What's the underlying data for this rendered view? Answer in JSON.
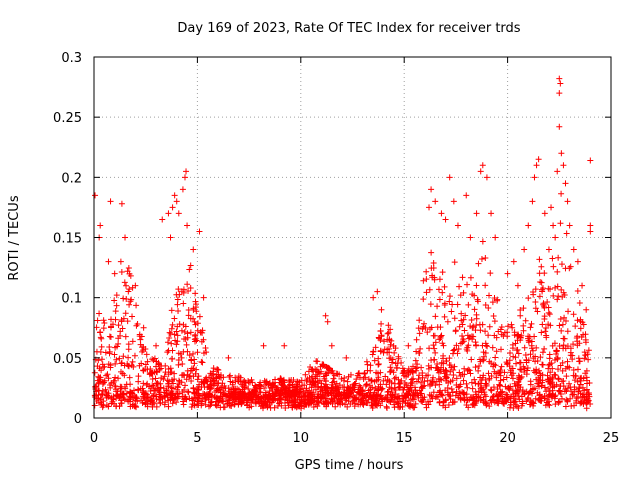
{
  "chart_data": {
    "type": "scatter",
    "title": "Day 169 of 2023, Rate Of TEC Index for receiver trds",
    "xlabel": "GPS time / hours",
    "ylabel": "ROTI / TECUs",
    "xlim": [
      0,
      25
    ],
    "ylim": [
      0,
      0.3
    ],
    "xticks": [
      0,
      5,
      10,
      15,
      20,
      25
    ],
    "yticks": [
      0,
      0.05,
      0.1,
      0.15,
      0.2,
      0.25,
      0.3
    ],
    "xtick_labels": [
      "0",
      "5",
      "10",
      "15",
      "20",
      "25"
    ],
    "ytick_labels": [
      "0",
      "0.05",
      "0.1",
      "0.15",
      "0.2",
      "0.25",
      "0.3"
    ],
    "grid": true,
    "marker": "+",
    "color": "#ff0000",
    "envelope": {
      "x": [
        0,
        0.3,
        0.6,
        1.0,
        1.3,
        1.6,
        2.0,
        2.5,
        3.0,
        3.5,
        3.9,
        4.2,
        4.6,
        5.0,
        5.5,
        6.0,
        7.0,
        8.0,
        9.0,
        10.0,
        10.5,
        11.0,
        11.5,
        12.0,
        13.0,
        13.5,
        14.0,
        14.5,
        15.0,
        15.5,
        16.0,
        16.3,
        16.7,
        17.0,
        17.5,
        18.0,
        18.5,
        18.8,
        19.2,
        19.6,
        20.0,
        20.5,
        21.0,
        21.3,
        21.7,
        22.0,
        22.3,
        22.6,
        23.0,
        23.4,
        23.8,
        24.0
      ],
      "y": [
        0.06,
        0.1,
        0.08,
        0.1,
        0.13,
        0.14,
        0.1,
        0.06,
        0.05,
        0.05,
        0.12,
        0.15,
        0.14,
        0.1,
        0.05,
        0.04,
        0.035,
        0.03,
        0.035,
        0.03,
        0.045,
        0.05,
        0.04,
        0.035,
        0.04,
        0.06,
        0.085,
        0.07,
        0.04,
        0.045,
        0.13,
        0.14,
        0.12,
        0.13,
        0.13,
        0.11,
        0.14,
        0.15,
        0.13,
        0.09,
        0.08,
        0.09,
        0.11,
        0.15,
        0.13,
        0.12,
        0.15,
        0.19,
        0.14,
        0.12,
        0.08,
        0.05
      ]
    },
    "outliers": [
      [
        0.05,
        0.185
      ],
      [
        0.25,
        0.15
      ],
      [
        0.3,
        0.16
      ],
      [
        0.7,
        0.13
      ],
      [
        0.8,
        0.18
      ],
      [
        1.0,
        0.12
      ],
      [
        1.3,
        0.13
      ],
      [
        1.35,
        0.178
      ],
      [
        1.5,
        0.15
      ],
      [
        2.0,
        0.11
      ],
      [
        2.4,
        0.075
      ],
      [
        3.0,
        0.06
      ],
      [
        3.3,
        0.165
      ],
      [
        3.6,
        0.17
      ],
      [
        3.7,
        0.15
      ],
      [
        3.8,
        0.175
      ],
      [
        3.9,
        0.185
      ],
      [
        4.0,
        0.18
      ],
      [
        4.1,
        0.17
      ],
      [
        4.3,
        0.19
      ],
      [
        4.4,
        0.2
      ],
      [
        4.45,
        0.205
      ],
      [
        4.5,
        0.16
      ],
      [
        4.8,
        0.14
      ],
      [
        5.1,
        0.155
      ],
      [
        5.3,
        0.1
      ],
      [
        6.5,
        0.05
      ],
      [
        8.2,
        0.06
      ],
      [
        9.2,
        0.06
      ],
      [
        11.2,
        0.085
      ],
      [
        11.3,
        0.08
      ],
      [
        11.5,
        0.06
      ],
      [
        12.2,
        0.05
      ],
      [
        13.5,
        0.1
      ],
      [
        13.7,
        0.105
      ],
      [
        13.9,
        0.09
      ],
      [
        14.2,
        0.07
      ],
      [
        15.2,
        0.06
      ],
      [
        15.6,
        0.065
      ],
      [
        16.2,
        0.175
      ],
      [
        16.3,
        0.19
      ],
      [
        16.5,
        0.18
      ],
      [
        16.8,
        0.17
      ],
      [
        17.0,
        0.165
      ],
      [
        17.2,
        0.2
      ],
      [
        17.4,
        0.18
      ],
      [
        17.6,
        0.16
      ],
      [
        18.0,
        0.185
      ],
      [
        18.2,
        0.15
      ],
      [
        18.5,
        0.17
      ],
      [
        18.7,
        0.205
      ],
      [
        18.8,
        0.21
      ],
      [
        19.0,
        0.2
      ],
      [
        19.2,
        0.17
      ],
      [
        19.4,
        0.15
      ],
      [
        20.0,
        0.12
      ],
      [
        20.3,
        0.13
      ],
      [
        20.5,
        0.11
      ],
      [
        20.8,
        0.14
      ],
      [
        21.0,
        0.16
      ],
      [
        21.2,
        0.18
      ],
      [
        21.3,
        0.2
      ],
      [
        21.4,
        0.21
      ],
      [
        21.5,
        0.215
      ],
      [
        21.8,
        0.17
      ],
      [
        22.0,
        0.14
      ],
      [
        22.1,
        0.175
      ],
      [
        22.2,
        0.16
      ],
      [
        22.3,
        0.15
      ],
      [
        22.4,
        0.205
      ],
      [
        22.5,
        0.27
      ],
      [
        22.5,
        0.282
      ],
      [
        22.55,
        0.278
      ],
      [
        22.5,
        0.242
      ],
      [
        22.6,
        0.22
      ],
      [
        22.7,
        0.21
      ],
      [
        22.8,
        0.195
      ],
      [
        22.9,
        0.18
      ],
      [
        23.0,
        0.16
      ],
      [
        23.2,
        0.14
      ],
      [
        23.4,
        0.13
      ],
      [
        23.6,
        0.11
      ],
      [
        23.8,
        0.09
      ],
      [
        24.0,
        0.214
      ],
      [
        24.0,
        0.16
      ],
      [
        24.0,
        0.155
      ]
    ]
  }
}
